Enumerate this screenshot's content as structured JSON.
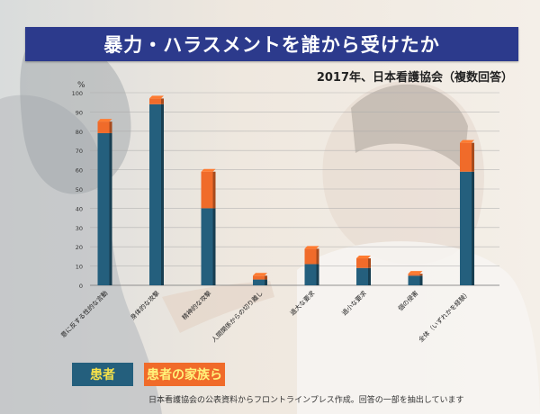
{
  "title": "暴力・ハラスメントを誰から受けたか",
  "subtitle": "2017年、日本看護協会（複数回答）",
  "legend": {
    "patients": "患者",
    "family": "患者の家族ら"
  },
  "footnote": "日本看護協会の公表資料からフロントラインプレス作成。回答の一部を抽出しています",
  "colors": {
    "patients": "#245f7d",
    "family": "#f06b2a",
    "title_bg": "#2c3a8c"
  },
  "chart_data": {
    "type": "bar",
    "stacked": true,
    "ylabel": "%",
    "ylim": [
      0,
      100
    ],
    "yticks": [
      0,
      10,
      20,
      30,
      40,
      50,
      60,
      70,
      80,
      90,
      100
    ],
    "yticks_text": [
      "0",
      "10",
      "20",
      "30",
      "40",
      "50",
      "60",
      "70",
      "80",
      "90",
      "100"
    ],
    "grid": true,
    "categories": [
      "意に反する性的な言動",
      "身体的な攻撃",
      "精神的な攻撃",
      "人間関係からの切り離し",
      "過大な要求",
      "過小な要求",
      "個の侵害",
      "全体（いずれかを経験）"
    ],
    "series": [
      {
        "name": "患者",
        "values": [
          79,
          94,
          40,
          3,
          11,
          9,
          5,
          59
        ]
      },
      {
        "name": "患者の家族ら",
        "values": [
          6,
          3,
          19,
          2,
          8,
          5,
          1,
          15
        ]
      }
    ]
  }
}
